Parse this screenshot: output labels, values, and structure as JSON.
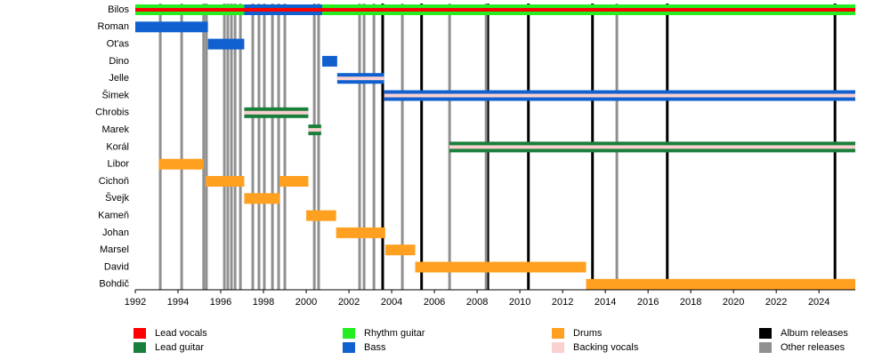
{
  "chart_data": {
    "type": "timeline",
    "roles": [
      {
        "name": "Lead vocals",
        "color": "#ff0000"
      },
      {
        "name": "Lead guitar",
        "color": "#1a7f3c"
      },
      {
        "name": "Rhythm guitar",
        "color": "#22ee22"
      },
      {
        "name": "Bass",
        "color": "#1060d0"
      },
      {
        "name": "Drums",
        "color": "#ffa020"
      },
      {
        "name": "Backing vocals",
        "color": "#fbd0d0"
      }
    ],
    "releases": [
      {
        "name": "Album releases",
        "color": "#000000",
        "years": [
          2003.58,
          2005.4,
          2008.5,
          2010.4,
          2013.4,
          2016.9,
          2024.75
        ]
      },
      {
        "name": "Other releases",
        "color": "#909090",
        "years": [
          1993.17,
          1994.17,
          1995.2,
          1995.33,
          1996.17,
          1996.33,
          1996.5,
          1996.67,
          1996.92,
          1997.5,
          1997.79,
          1998.04,
          1998.42,
          1998.71,
          1999.0,
          2000.38,
          2000.58,
          2002.5,
          2002.71,
          2003.17,
          2004.5,
          2006.71,
          2008.42,
          2014.54
        ]
      }
    ],
    "rows": [
      {
        "name": "Bilos",
        "bars": [
          {
            "role": 2,
            "start": 1992,
            "end": 1997.1
          },
          {
            "role": 3,
            "start": 1997.1,
            "end": 2000.75
          },
          {
            "role": 2,
            "start": 2000.75,
            "end": 2025.7
          }
        ],
        "inner": [
          {
            "role": 0,
            "start": 1992,
            "end": 2025.7
          }
        ]
      },
      {
        "name": "Roman",
        "bars": [
          {
            "role": 3,
            "start": 1992,
            "end": 1995.4
          }
        ],
        "inner": []
      },
      {
        "name": "Ot'as",
        "bars": [
          {
            "role": 3,
            "start": 1995.4,
            "end": 1997.1
          }
        ],
        "inner": []
      },
      {
        "name": "Dino",
        "bars": [
          {
            "role": 3,
            "start": 2000.75,
            "end": 2001.45
          }
        ],
        "inner": []
      },
      {
        "name": "Jelle",
        "bars": [
          {
            "role": 3,
            "start": 2001.45,
            "end": 2003.65
          }
        ],
        "inner": [
          {
            "role": 5,
            "start": 2001.45,
            "end": 2003.65
          }
        ]
      },
      {
        "name": "Šimek",
        "bars": [
          {
            "role": 3,
            "start": 2003.65,
            "end": 2025.7
          }
        ],
        "inner": [
          {
            "role": 5,
            "start": 2003.65,
            "end": 2025.7
          }
        ]
      },
      {
        "name": "Chrobis",
        "bars": [
          {
            "role": 1,
            "start": 1997.1,
            "end": 2000.1
          }
        ],
        "inner": [
          {
            "role": 5,
            "start": 1997.1,
            "end": 2000.1
          }
        ]
      },
      {
        "name": "Marek",
        "bars": [
          {
            "role": 1,
            "start": 2000.1,
            "end": 2000.7
          }
        ],
        "inner": [
          {
            "role": 5,
            "start": 2000.1,
            "end": 2000.7
          }
        ]
      },
      {
        "name": "Korál",
        "bars": [
          {
            "role": 1,
            "start": 2006.7,
            "end": 2025.7
          }
        ],
        "inner": [
          {
            "role": 5,
            "start": 2006.7,
            "end": 2025.7
          }
        ]
      },
      {
        "name": "Libor",
        "bars": [
          {
            "role": 4,
            "start": 1993.1,
            "end": 1995.2
          }
        ],
        "inner": []
      },
      {
        "name": "Cichoň",
        "bars": [
          {
            "role": 4,
            "start": 1995.3,
            "end": 1997.1
          },
          {
            "role": 4,
            "start": 1998.75,
            "end": 2000.1
          }
        ],
        "inner": []
      },
      {
        "name": "Švejk",
        "bars": [
          {
            "role": 4,
            "start": 1997.1,
            "end": 1998.75
          }
        ],
        "inner": []
      },
      {
        "name": "Kameň",
        "bars": [
          {
            "role": 4,
            "start": 2000.0,
            "end": 2001.4
          }
        ],
        "inner": []
      },
      {
        "name": "Johan",
        "bars": [
          {
            "role": 4,
            "start": 2001.4,
            "end": 2003.7
          }
        ],
        "inner": []
      },
      {
        "name": "Marsel",
        "bars": [
          {
            "role": 4,
            "start": 2003.7,
            "end": 2005.1
          }
        ],
        "inner": []
      },
      {
        "name": "David",
        "bars": [
          {
            "role": 4,
            "start": 2005.1,
            "end": 2013.1
          }
        ],
        "inner": []
      },
      {
        "name": "Bohdič",
        "bars": [
          {
            "role": 4,
            "start": 2013.1,
            "end": 2025.7
          }
        ],
        "inner": []
      }
    ],
    "xlim": [
      1992,
      2025.7
    ],
    "xticks": [
      1992,
      1994,
      1996,
      1998,
      2000,
      2002,
      2004,
      2006,
      2008,
      2010,
      2012,
      2014,
      2016,
      2018,
      2020,
      2022,
      2024
    ]
  }
}
